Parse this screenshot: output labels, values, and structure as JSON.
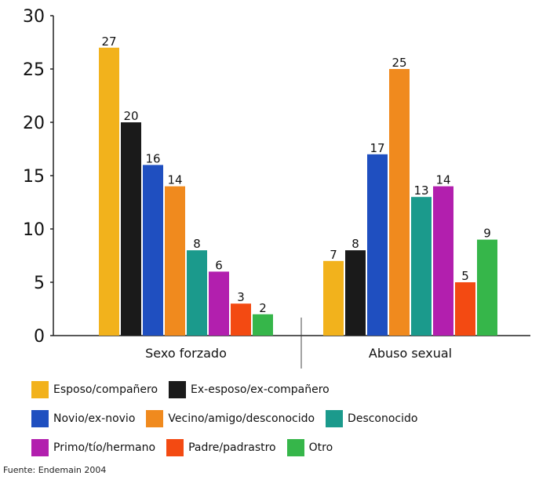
{
  "chart_data": {
    "type": "bar",
    "categories": [
      "Sexo forzado",
      "Abuso sexual"
    ],
    "ylim": [
      0,
      30
    ],
    "yticks": [
      "0",
      "5",
      "10",
      "15",
      "20",
      "25",
      "30"
    ],
    "grid": false,
    "legend_position": "bottom",
    "series": [
      {
        "name": "Esposo/compañero",
        "color": "#F2B21C",
        "values": [
          27,
          7
        ]
      },
      {
        "name": "Ex-esposo/ex-compañero",
        "color": "#1A1A1A",
        "values": [
          20,
          8
        ]
      },
      {
        "name": "Novio/ex-novio",
        "color": "#1F4FC0",
        "values": [
          16,
          17
        ]
      },
      {
        "name": "Vecino/amigo/desconocido",
        "color": "#F08A1E",
        "values": [
          14,
          25
        ]
      },
      {
        "name": "Desconocido",
        "color": "#1B9A8C",
        "values": [
          8,
          13
        ]
      },
      {
        "name": "Primo/tío/hermano",
        "color": "#B21FAE",
        "values": [
          6,
          14
        ]
      },
      {
        "name": "Padre/padrastro",
        "color": "#F34A12",
        "values": [
          3,
          5
        ]
      },
      {
        "name": "Otro",
        "color": "#36B64A",
        "values": [
          2,
          9
        ]
      }
    ],
    "legend_rows": [
      [
        0,
        1
      ],
      [
        2,
        3,
        4
      ],
      [
        5,
        6,
        7
      ]
    ]
  },
  "source": "Fuente: Endemain 2004"
}
